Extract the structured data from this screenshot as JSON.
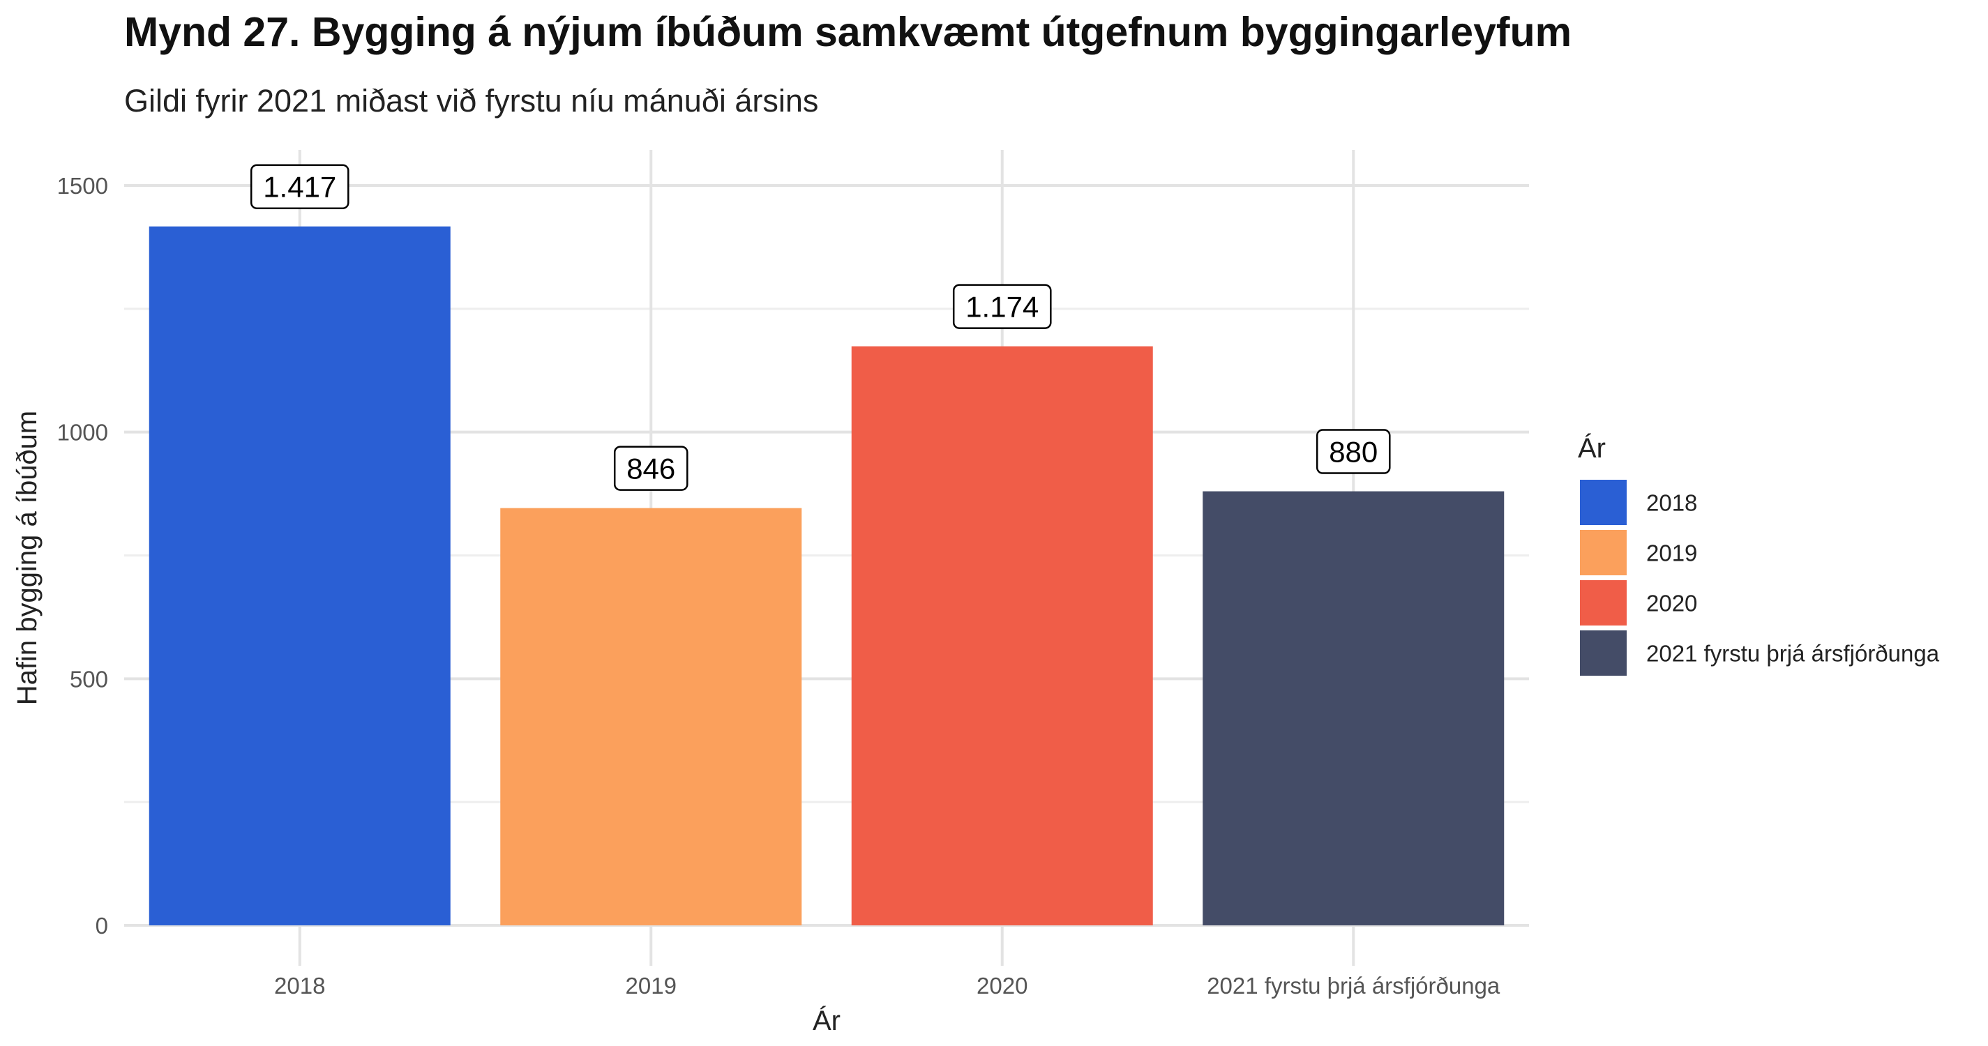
{
  "chart_data": {
    "type": "bar",
    "title": "Mynd 27. Bygging á nýjum íbúðum samkvæmt útgefnum byggingarleyfum",
    "subtitle": "Gildi fyrir 2021 miðast við fyrstu níu mánuði ársins",
    "xlabel": "Ár",
    "ylabel": "Hafin bygging á íbúðum",
    "categories": [
      "2018",
      "2019",
      "2020",
      "2021 fyrstu þrjá ársfjórðunga"
    ],
    "values": [
      1417,
      846,
      1174,
      880
    ],
    "data_labels": [
      "1.417",
      "846",
      "1.174",
      "880"
    ],
    "colors": [
      "#2A5FD4",
      "#FBA05C",
      "#F05D48",
      "#444C67"
    ],
    "ylim": [
      0,
      1500
    ],
    "yticks": [
      0,
      500,
      1000,
      1500
    ],
    "yticks_labels": [
      "0",
      "500",
      "1000",
      "1500"
    ],
    "grid": true,
    "legend": {
      "title": "Ár",
      "placement": "right",
      "entries": [
        "2018",
        "2019",
        "2020",
        "2021 fyrstu þrjá ársfjórðunga"
      ]
    }
  }
}
